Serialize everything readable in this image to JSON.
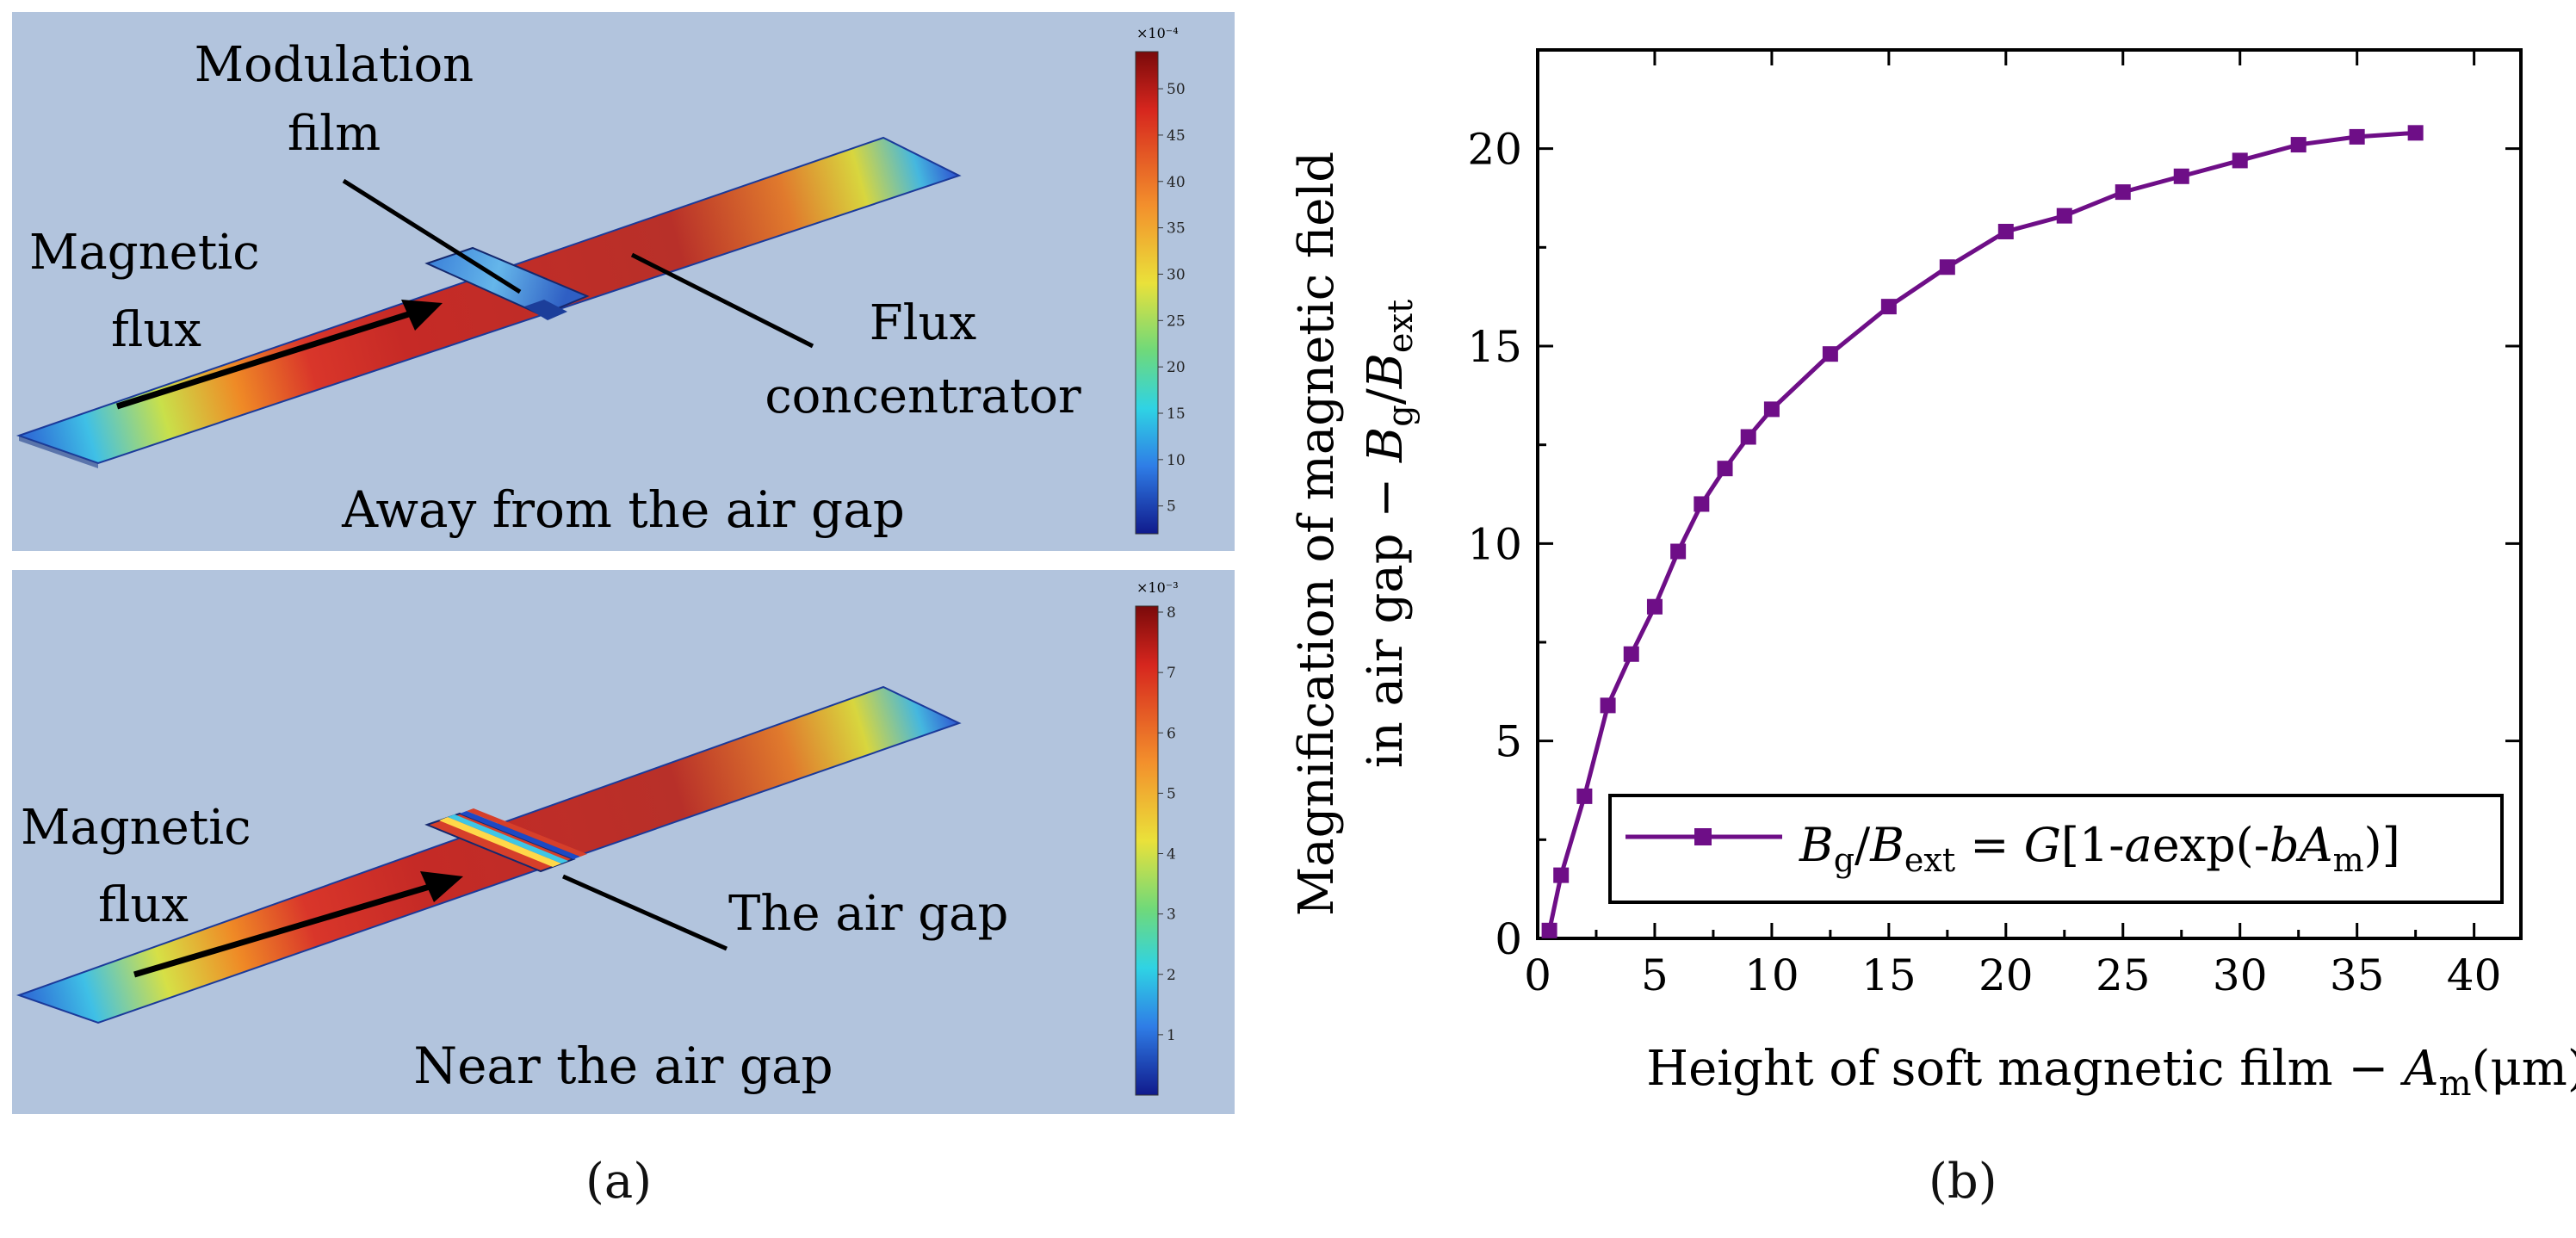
{
  "panel_a": {
    "top": {
      "label_modulation": [
        "Modulation",
        "film"
      ],
      "label_flux": [
        "Magnetic",
        "flux"
      ],
      "label_concentrator": [
        "Flux",
        "concentrator"
      ],
      "caption": "Away from the air gap",
      "colorbar_exponent": "×10⁻⁴",
      "colorbar_ticks": [
        "50",
        "45",
        "40",
        "35",
        "30",
        "25",
        "20",
        "15",
        "10",
        "5"
      ],
      "colorbar_max": 54,
      "colorbar_min": 2
    },
    "bottom": {
      "label_flux": [
        "Magnetic",
        "flux"
      ],
      "label_airgap": "The air gap",
      "caption": "Near the air gap",
      "colorbar_exponent": "×10⁻³",
      "colorbar_ticks": [
        "8",
        "7",
        "6",
        "5",
        "4",
        "3",
        "2",
        "1"
      ],
      "colorbar_max": 8.1,
      "colorbar_min": 0
    },
    "label": "(a)"
  },
  "label_b": "(b)",
  "chart_data": {
    "type": "line",
    "series": [
      {
        "name": "B_g/B_ext = G[1-a exp(-b A_m)]",
        "x": [
          0.5,
          1,
          2,
          3,
          4,
          5,
          6,
          7,
          8,
          9,
          10,
          12.5,
          15,
          17.5,
          20,
          22.5,
          25,
          27.5,
          30,
          32.5,
          35,
          37.5
        ],
        "y": [
          0.2,
          1.6,
          3.6,
          5.9,
          7.2,
          8.4,
          9.8,
          11.0,
          11.9,
          12.7,
          13.4,
          14.8,
          16.0,
          17.0,
          17.9,
          18.3,
          18.9,
          19.3,
          19.7,
          20.1,
          20.3,
          20.4
        ]
      }
    ],
    "xlim": [
      0,
      42
    ],
    "ylim": [
      0,
      22.5
    ],
    "xticks": [
      0,
      5,
      10,
      15,
      20,
      25,
      30,
      35,
      40
    ],
    "yticks": [
      0,
      5,
      10,
      15,
      20
    ],
    "xlabel_main": "Height of soft magnetic film − ",
    "xlabel_var": "A",
    "xlabel_sub": "m",
    "xlabel_unit": "(μm)",
    "ylabel_line1": "Magnification of magnetic field",
    "ylabel_line2_prefix": "in air gap − ",
    "ylabel_B": "B",
    "ylabel_sub_g": "g",
    "ylabel_slash": "/",
    "ylabel_sub_ext": "ext",
    "legend": {
      "B": "B",
      "sub_g": "g",
      "slash": "/",
      "sub_ext": "ext",
      "eq": " = ",
      "G": "G",
      "open": "[1-",
      "a": "a",
      "exp": "exp(-",
      "b": "b",
      "A": "A",
      "sub_m": "m",
      "close": ")]"
    },
    "color": "#6e0e87"
  }
}
